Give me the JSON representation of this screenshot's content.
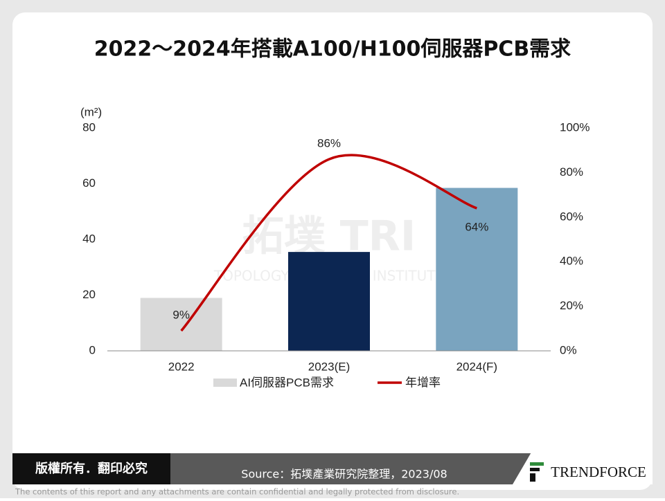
{
  "chart_data": {
    "type": "bar_line",
    "title": "2022～2024年搭載A100/H100伺服器PCB需求",
    "y_axis_label": "(m²)",
    "categories": [
      "2022",
      "2023(E)",
      "2024(F)"
    ],
    "series": [
      {
        "name": "AI伺服器PCB需求",
        "type": "bar",
        "colors": [
          "#d9d9d9",
          "#0c2652",
          "#7aa4bf"
        ],
        "values": [
          19,
          35.5,
          58.5
        ]
      },
      {
        "name": "年增率",
        "type": "line",
        "axis": "y2",
        "color": "#c00000",
        "values": [
          9,
          86,
          64
        ],
        "value_labels": [
          "9%",
          "86%",
          "64%"
        ]
      }
    ],
    "ylim": [
      0,
      80
    ],
    "yticks": [
      0,
      20,
      40,
      60,
      80
    ],
    "y2lim": [
      0,
      100
    ],
    "y2ticks": [
      {
        "value": 0,
        "label": "0%"
      },
      {
        "value": 20,
        "label": "20%"
      },
      {
        "value": 40,
        "label": "40%"
      },
      {
        "value": 60,
        "label": "60%"
      },
      {
        "value": 80,
        "label": "80%"
      },
      {
        "value": 100,
        "label": "100%"
      }
    ],
    "grid": false,
    "legend": "bottom",
    "watermark": [
      "拓墣 TRI",
      "TOPOLOGY RESEARCH INSTITUTE"
    ]
  },
  "footer": {
    "copyright": "版權所有．翻印必究",
    "source": "Source：拓墣產業研究院整理，2023/08",
    "logo": "TRENDFORCE",
    "disclaimer": "The contents of this report and any attachments are contain confidential and legally protected from disclosure."
  }
}
